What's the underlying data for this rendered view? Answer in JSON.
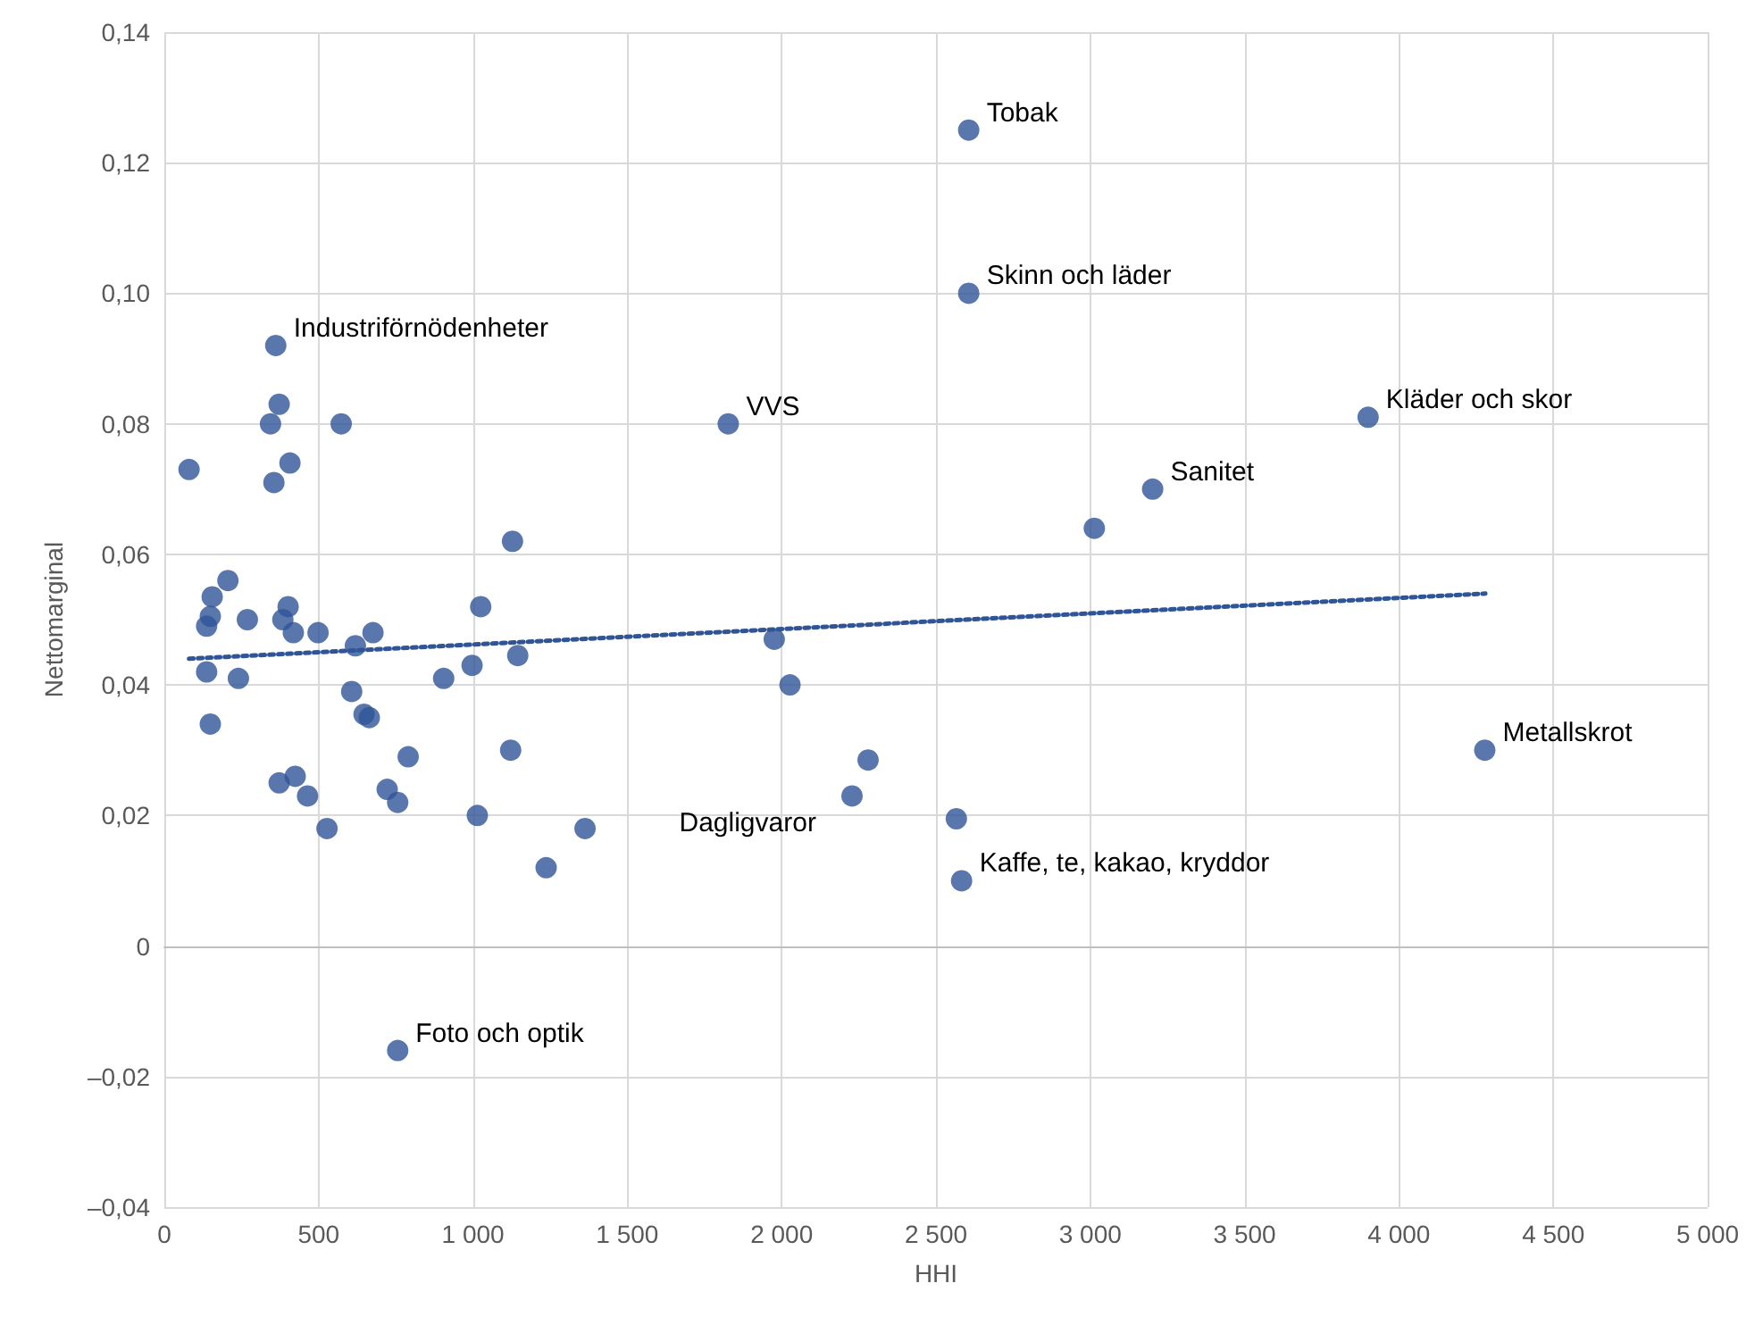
{
  "chart_data": {
    "type": "scatter",
    "xlabel": "HHI",
    "ylabel": "Nettomarginal",
    "xlim": [
      0,
      5000
    ],
    "ylim": [
      -0.04,
      0.14
    ],
    "xticks": [
      0,
      {
        "value": 500,
        "label": "500"
      },
      {
        "value": 1000,
        "label": "1 000"
      },
      {
        "value": 1500,
        "label": "1 500"
      },
      {
        "value": 2000,
        "label": "2 000"
      },
      {
        "value": 2500,
        "label": "2 500"
      },
      {
        "value": 3000,
        "label": "3 000"
      },
      {
        "value": 3500,
        "label": "3 500"
      },
      {
        "value": 4000,
        "label": "4 000"
      },
      {
        "value": 4500,
        "label": "4 500"
      },
      {
        "value": 5000,
        "label": "5 000"
      }
    ],
    "yticks": [
      {
        "value": -0.04,
        "label": "–0,04"
      },
      {
        "value": -0.02,
        "label": "–0,02"
      },
      0,
      {
        "value": 0.02,
        "label": "0,02"
      },
      {
        "value": 0.04,
        "label": "0,04"
      },
      {
        "value": 0.06,
        "label": "0,06"
      },
      {
        "value": 0.08,
        "label": "0,08"
      },
      {
        "value": 0.1,
        "label": "0,10"
      },
      {
        "value": 0.12,
        "label": "0,12"
      },
      {
        "value": 0.14,
        "label": "0,14"
      }
    ],
    "grid": true,
    "marker": "circle",
    "series": [
      {
        "color": "#2f5597",
        "x": [
          80,
          361,
          372,
          344,
          573,
          407,
          355,
          1128,
          206,
          155,
          401,
          149,
          137,
          269,
          384,
          418,
          498,
          619,
          676,
          1025,
          137,
          240,
          905,
          997,
          1145,
          607,
          647,
          664,
          149,
          790,
          372,
          424,
          464,
          722,
          756,
          527,
          1014,
          1122,
          1363,
          1237,
          756,
          1976,
          2027,
          2280,
          2228,
          2566,
          2583,
          2606,
          2606,
          1827,
          3013,
          3202,
          3900,
          4278
        ],
        "values": [
          0.073,
          0.092,
          0.083,
          0.08,
          0.08,
          0.074,
          0.071,
          0.062,
          0.056,
          0.0535,
          0.052,
          0.0505,
          0.049,
          0.05,
          0.05,
          0.048,
          0.048,
          0.046,
          0.048,
          0.052,
          0.042,
          0.041,
          0.041,
          0.043,
          0.0445,
          0.039,
          0.0355,
          0.035,
          0.034,
          0.029,
          0.025,
          0.026,
          0.023,
          0.024,
          0.022,
          0.018,
          0.02,
          0.03,
          0.018,
          0.012,
          -0.016,
          0.047,
          0.04,
          0.0285,
          0.023,
          0.0195,
          0.01,
          0.125,
          0.1,
          0.08,
          0.064,
          0.07,
          0.081,
          0.03
        ]
      },
      {
        "type": "line",
        "color": "#2f5597",
        "line_style": "dotted",
        "marker": "none",
        "x": [
          80,
          4280
        ],
        "values": [
          0.044,
          0.054
        ]
      }
    ],
    "annotations": [
      {
        "text": "Tobak",
        "x": 2606,
        "y": 0.125
      },
      {
        "text": "Skinn och läder",
        "x": 2606,
        "y": 0.1
      },
      {
        "text": "Industriförnödenheter",
        "x": 361,
        "y": 0.092
      },
      {
        "text": "VVS",
        "x": 1827,
        "y": 0.08
      },
      {
        "text": "Kläder och skor",
        "x": 3900,
        "y": 0.081
      },
      {
        "text": "Sanitet",
        "x": 3202,
        "y": 0.07
      },
      {
        "text": "Metallskrot",
        "x": 4278,
        "y": 0.03
      },
      {
        "text": "Dagligvaror",
        "x": 2228,
        "y": 0.023
      },
      {
        "text": "Kaffe, te, kakao, kryddor",
        "x": 2583,
        "y": 0.01
      },
      {
        "text": "Foto och optik",
        "x": 756,
        "y": -0.016
      }
    ]
  }
}
